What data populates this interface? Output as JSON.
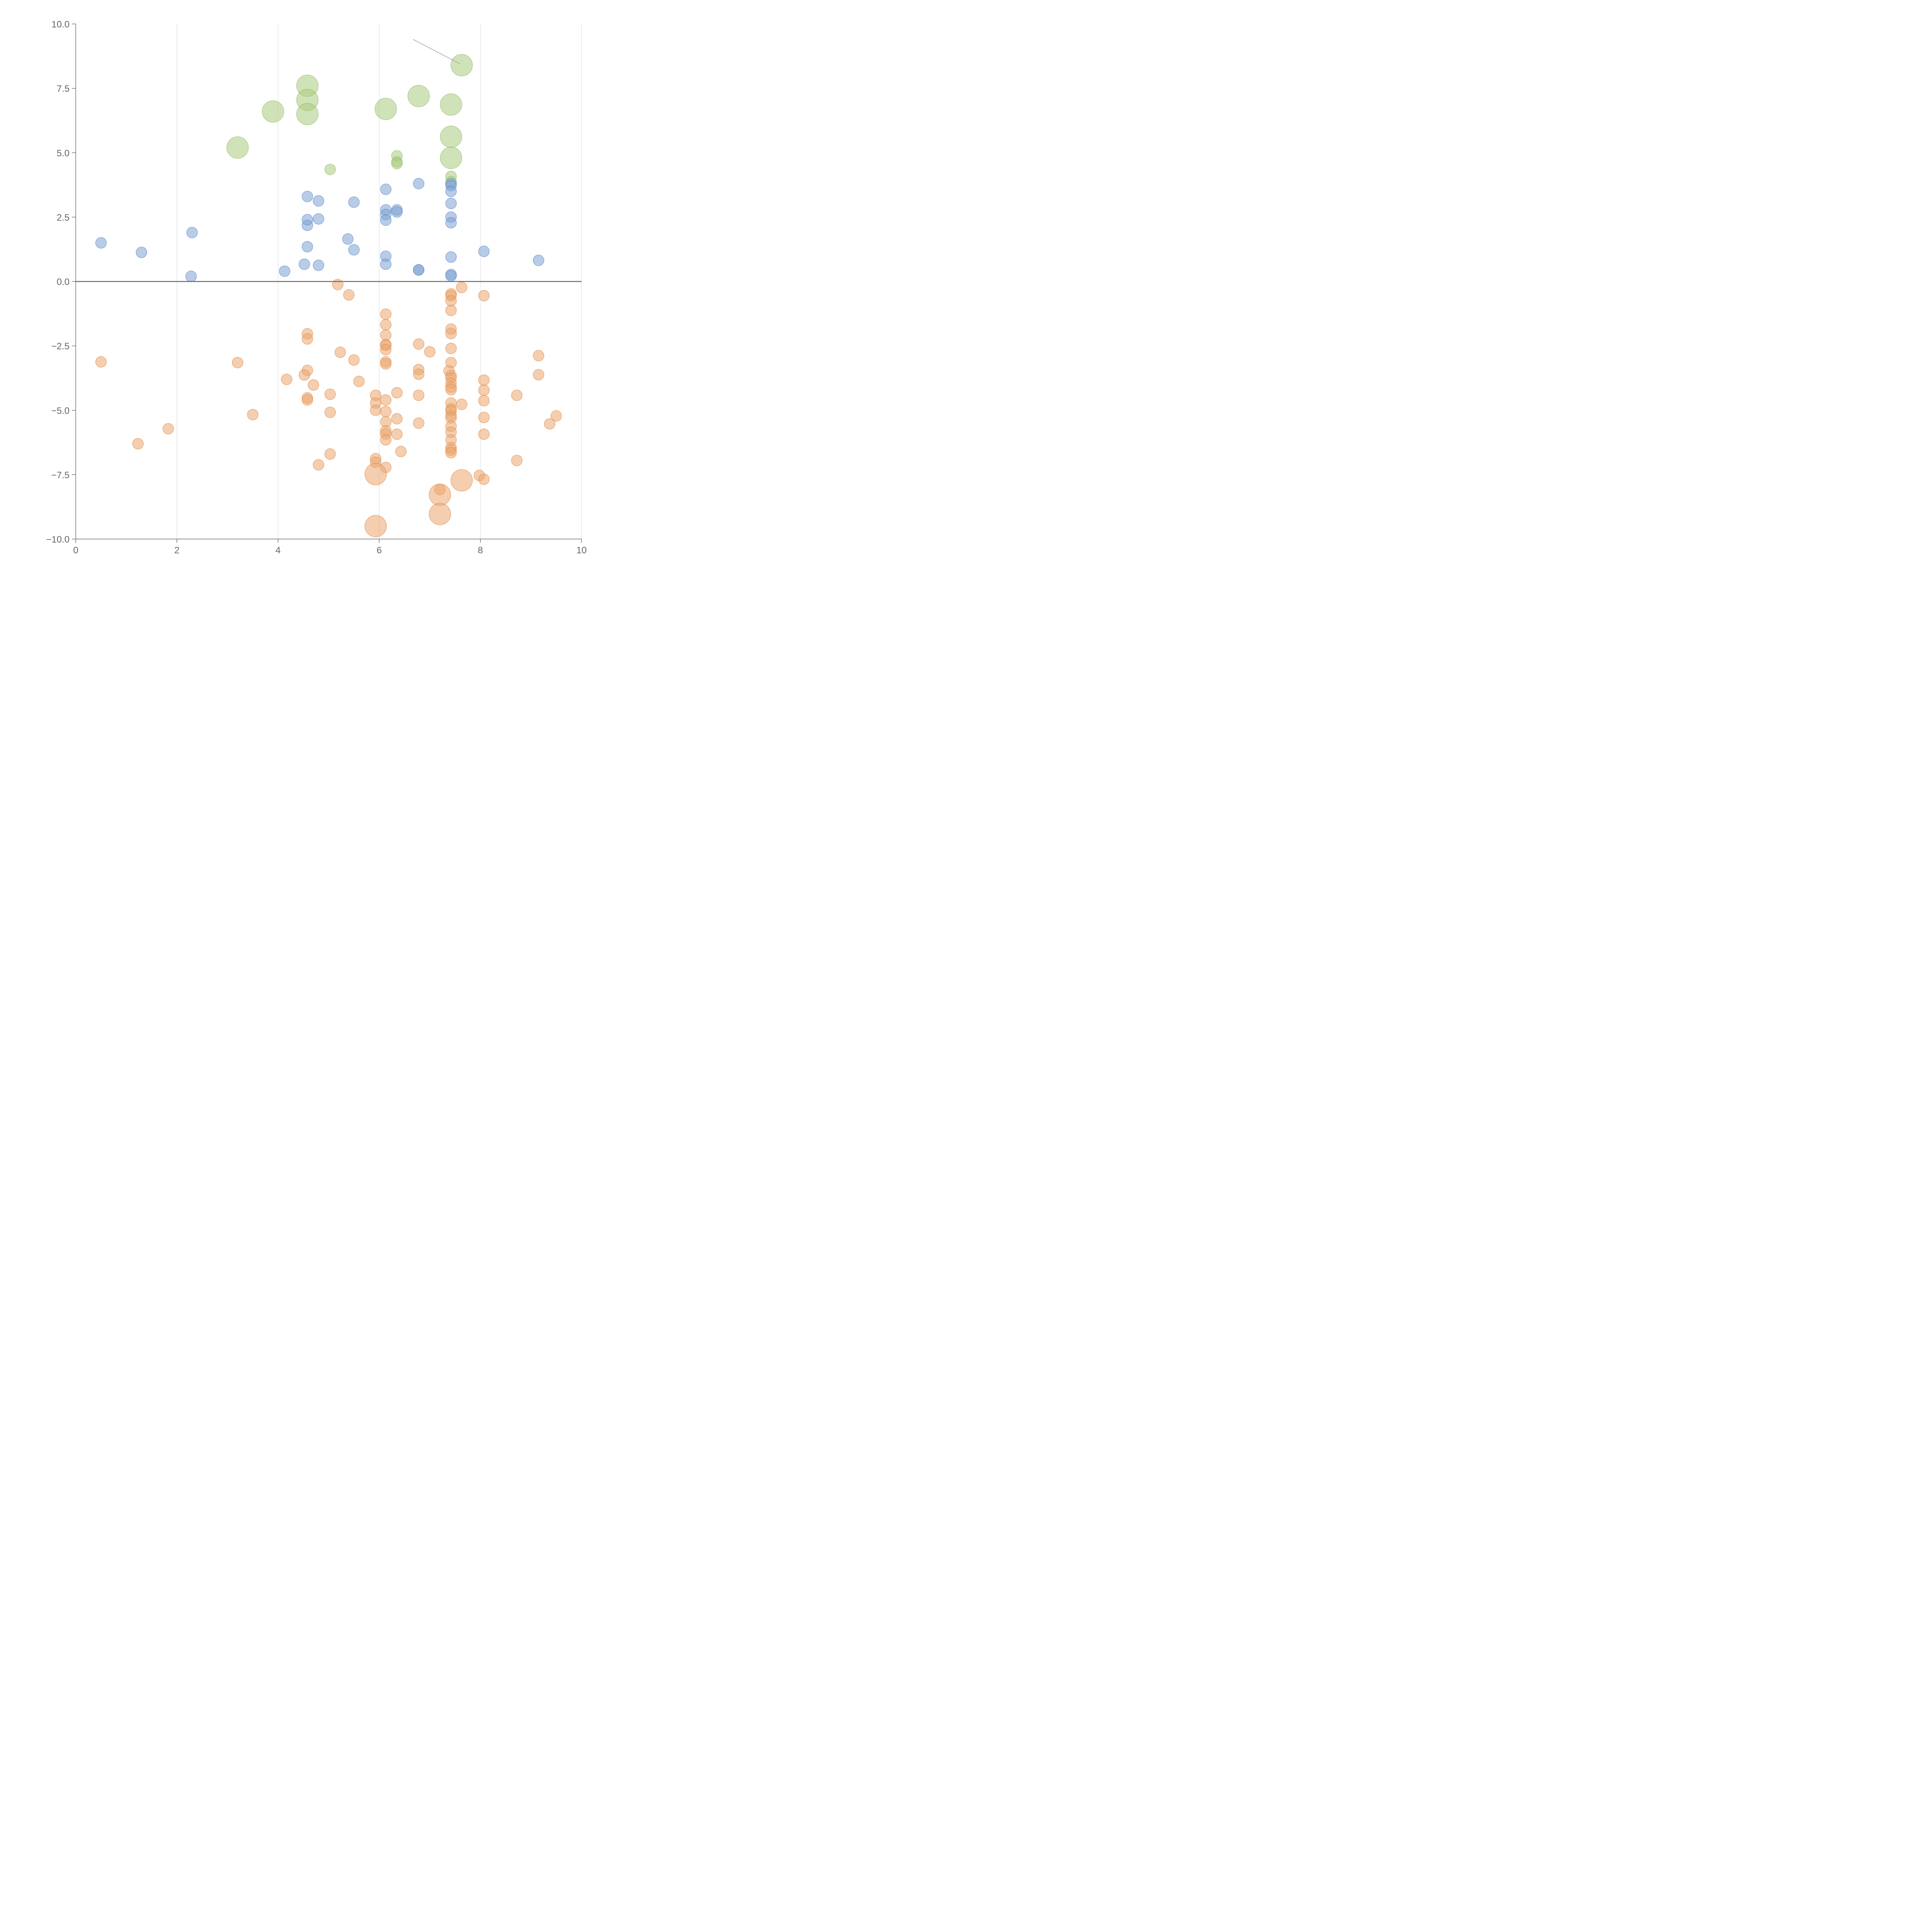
{
  "chart_data": {
    "type": "scatter",
    "title": "",
    "xlabel": "",
    "ylabel": "",
    "xlim": [
      0,
      10
    ],
    "ylim": [
      -10,
      10
    ],
    "x_ticks": [
      0,
      2,
      4,
      6,
      8,
      10
    ],
    "y_ticks": [
      10,
      7.5,
      5,
      2.5,
      0,
      -2.5,
      -5,
      -7.5,
      -10
    ],
    "x_tick_labels": [
      "0",
      "2",
      "4",
      "6",
      "8",
      "10"
    ],
    "y_tick_labels": [
      "10.0",
      "7.5",
      "5.0",
      "2.5",
      "0.0",
      "−2.5",
      "−5.0",
      "−7.5",
      "−10.0"
    ],
    "vertical_grid": true,
    "zero_line": true,
    "series": [
      {
        "name": "green",
        "color": "#a9cc7e",
        "stroke": "#8fb866",
        "points": [
          [
            7.63,
            8.4,
            2
          ],
          [
            4.58,
            7.6,
            2
          ],
          [
            4.58,
            7.05,
            2
          ],
          [
            4.58,
            6.5,
            2
          ],
          [
            3.9,
            6.6,
            2
          ],
          [
            6.13,
            6.7,
            2
          ],
          [
            6.78,
            7.2,
            2
          ],
          [
            7.42,
            6.87,
            2
          ],
          [
            7.42,
            5.62,
            2
          ],
          [
            7.42,
            4.8,
            2
          ],
          [
            3.2,
            5.2,
            2
          ],
          [
            5.03,
            4.35,
            1
          ],
          [
            6.35,
            4.88,
            1
          ],
          [
            6.35,
            4.65,
            1
          ],
          [
            6.35,
            4.58,
            1
          ],
          [
            7.42,
            4.08,
            1
          ],
          [
            7.42,
            3.88,
            1
          ]
        ]
      },
      {
        "name": "blue",
        "color": "#7da3d4",
        "stroke": "#5a86c2",
        "points": [
          [
            0.5,
            1.5,
            1
          ],
          [
            1.3,
            1.13,
            1
          ],
          [
            2.3,
            1.9,
            1
          ],
          [
            2.28,
            0.2,
            1
          ],
          [
            4.13,
            0.4,
            1
          ],
          [
            4.52,
            0.67,
            1
          ],
          [
            4.58,
            1.35,
            1
          ],
          [
            4.58,
            2.18,
            1
          ],
          [
            4.58,
            2.4,
            1
          ],
          [
            4.58,
            3.3,
            1
          ],
          [
            4.8,
            3.13,
            1
          ],
          [
            4.8,
            2.43,
            1
          ],
          [
            4.8,
            0.63,
            1
          ],
          [
            5.38,
            1.65,
            1
          ],
          [
            5.5,
            1.23,
            1
          ],
          [
            5.5,
            3.08,
            1
          ],
          [
            6.13,
            3.58,
            1
          ],
          [
            6.13,
            2.78,
            1
          ],
          [
            6.13,
            2.6,
            1
          ],
          [
            6.13,
            2.38,
            1
          ],
          [
            6.13,
            0.98,
            1
          ],
          [
            6.13,
            0.67,
            1
          ],
          [
            6.35,
            2.78,
            1
          ],
          [
            6.35,
            2.7,
            1
          ],
          [
            6.78,
            3.8,
            1
          ],
          [
            6.78,
            0.45,
            1
          ],
          [
            6.78,
            0.45,
            1
          ],
          [
            7.42,
            3.8,
            1
          ],
          [
            7.42,
            3.72,
            1
          ],
          [
            7.42,
            3.5,
            1
          ],
          [
            7.42,
            3.03,
            1
          ],
          [
            7.42,
            2.5,
            1
          ],
          [
            7.42,
            2.28,
            1
          ],
          [
            7.42,
            0.95,
            1
          ],
          [
            7.42,
            0.27,
            1
          ],
          [
            7.42,
            0.22,
            1
          ],
          [
            8.07,
            1.17,
            1
          ],
          [
            9.15,
            0.82,
            1
          ]
        ]
      },
      {
        "name": "orange",
        "color": "#eba66e",
        "stroke": "#dd8a4a",
        "points": [
          [
            5.18,
            -0.12,
            1
          ],
          [
            5.4,
            -0.52,
            1
          ],
          [
            7.63,
            -0.23,
            1
          ],
          [
            8.07,
            -0.55,
            1
          ],
          [
            7.42,
            -0.48,
            1
          ],
          [
            7.42,
            -0.55,
            1
          ],
          [
            7.42,
            -0.75,
            1
          ],
          [
            7.42,
            -1.12,
            1
          ],
          [
            6.13,
            -1.27,
            1
          ],
          [
            6.13,
            -1.68,
            1
          ],
          [
            6.13,
            -2.08,
            1
          ],
          [
            6.13,
            -2.45,
            1
          ],
          [
            6.13,
            -2.48,
            1
          ],
          [
            6.13,
            -2.65,
            1
          ],
          [
            7.42,
            -1.85,
            1
          ],
          [
            7.42,
            -2.02,
            1
          ],
          [
            7.42,
            -2.6,
            1
          ],
          [
            7.42,
            -3.15,
            1
          ],
          [
            4.58,
            -2.03,
            1
          ],
          [
            4.58,
            -2.23,
            1
          ],
          [
            6.78,
            -2.43,
            1
          ],
          [
            7.0,
            -2.73,
            1
          ],
          [
            5.23,
            -2.75,
            1
          ],
          [
            9.15,
            -2.88,
            1
          ],
          [
            0.5,
            -3.12,
            1
          ],
          [
            3.2,
            -3.15,
            1
          ],
          [
            5.5,
            -3.05,
            1
          ],
          [
            6.13,
            -3.12,
            1
          ],
          [
            6.13,
            -3.2,
            1
          ],
          [
            6.78,
            -3.42,
            1
          ],
          [
            6.78,
            -3.6,
            1
          ],
          [
            4.58,
            -3.45,
            1
          ],
          [
            4.52,
            -3.63,
            1
          ],
          [
            4.17,
            -3.8,
            1
          ],
          [
            4.7,
            -4.02,
            1
          ],
          [
            5.6,
            -3.88,
            1
          ],
          [
            7.38,
            -3.47,
            1
          ],
          [
            7.42,
            -3.65,
            1
          ],
          [
            7.42,
            -3.75,
            1
          ],
          [
            7.42,
            -3.95,
            1
          ],
          [
            7.42,
            -4.1,
            1
          ],
          [
            7.42,
            -4.2,
            1
          ],
          [
            8.07,
            -3.83,
            1
          ],
          [
            9.15,
            -3.62,
            1
          ],
          [
            8.07,
            -4.22,
            1
          ],
          [
            8.07,
            -4.63,
            1
          ],
          [
            5.03,
            -4.38,
            1
          ],
          [
            4.58,
            -4.52,
            1
          ],
          [
            4.58,
            -4.6,
            1
          ],
          [
            6.35,
            -4.32,
            1
          ],
          [
            6.78,
            -4.42,
            1
          ],
          [
            8.72,
            -4.42,
            1
          ],
          [
            5.93,
            -4.42,
            1
          ],
          [
            5.93,
            -4.72,
            1
          ],
          [
            5.93,
            -5.0,
            1
          ],
          [
            6.13,
            -4.6,
            1
          ],
          [
            6.13,
            -5.05,
            1
          ],
          [
            6.13,
            -5.45,
            1
          ],
          [
            6.13,
            -5.8,
            1
          ],
          [
            6.13,
            -5.92,
            1
          ],
          [
            6.13,
            -6.15,
            1
          ],
          [
            7.42,
            -4.72,
            1
          ],
          [
            7.42,
            -4.95,
            1
          ],
          [
            7.42,
            -5.02,
            1
          ],
          [
            7.42,
            -5.2,
            1
          ],
          [
            7.42,
            -5.3,
            1
          ],
          [
            7.42,
            -5.62,
            1
          ],
          [
            7.42,
            -5.85,
            1
          ],
          [
            7.42,
            -6.15,
            1
          ],
          [
            7.42,
            -6.45,
            1
          ],
          [
            7.42,
            -6.55,
            1
          ],
          [
            7.42,
            -6.65,
            1
          ],
          [
            7.63,
            -4.77,
            1
          ],
          [
            8.07,
            -5.28,
            1
          ],
          [
            8.07,
            -5.93,
            1
          ],
          [
            5.03,
            -5.08,
            1
          ],
          [
            3.5,
            -5.17,
            1
          ],
          [
            6.35,
            -5.33,
            1
          ],
          [
            6.35,
            -5.93,
            1
          ],
          [
            6.78,
            -5.5,
            1
          ],
          [
            9.37,
            -5.53,
            1
          ],
          [
            9.5,
            -5.22,
            1
          ],
          [
            1.83,
            -5.72,
            1
          ],
          [
            1.23,
            -6.3,
            1
          ],
          [
            6.43,
            -6.6,
            1
          ],
          [
            5.03,
            -6.7,
            1
          ],
          [
            4.8,
            -7.12,
            1
          ],
          [
            5.93,
            -6.88,
            1
          ],
          [
            5.93,
            -7.02,
            1
          ],
          [
            6.13,
            -7.22,
            1
          ],
          [
            8.72,
            -6.95,
            1
          ],
          [
            7.98,
            -7.53,
            1
          ],
          [
            8.07,
            -7.68,
            1
          ],
          [
            7.2,
            -8.08,
            1
          ],
          [
            5.93,
            -7.48,
            2
          ],
          [
            7.63,
            -7.72,
            2
          ],
          [
            7.2,
            -8.28,
            2
          ],
          [
            7.2,
            -9.03,
            2
          ],
          [
            5.93,
            -9.5,
            2
          ]
        ]
      }
    ]
  }
}
